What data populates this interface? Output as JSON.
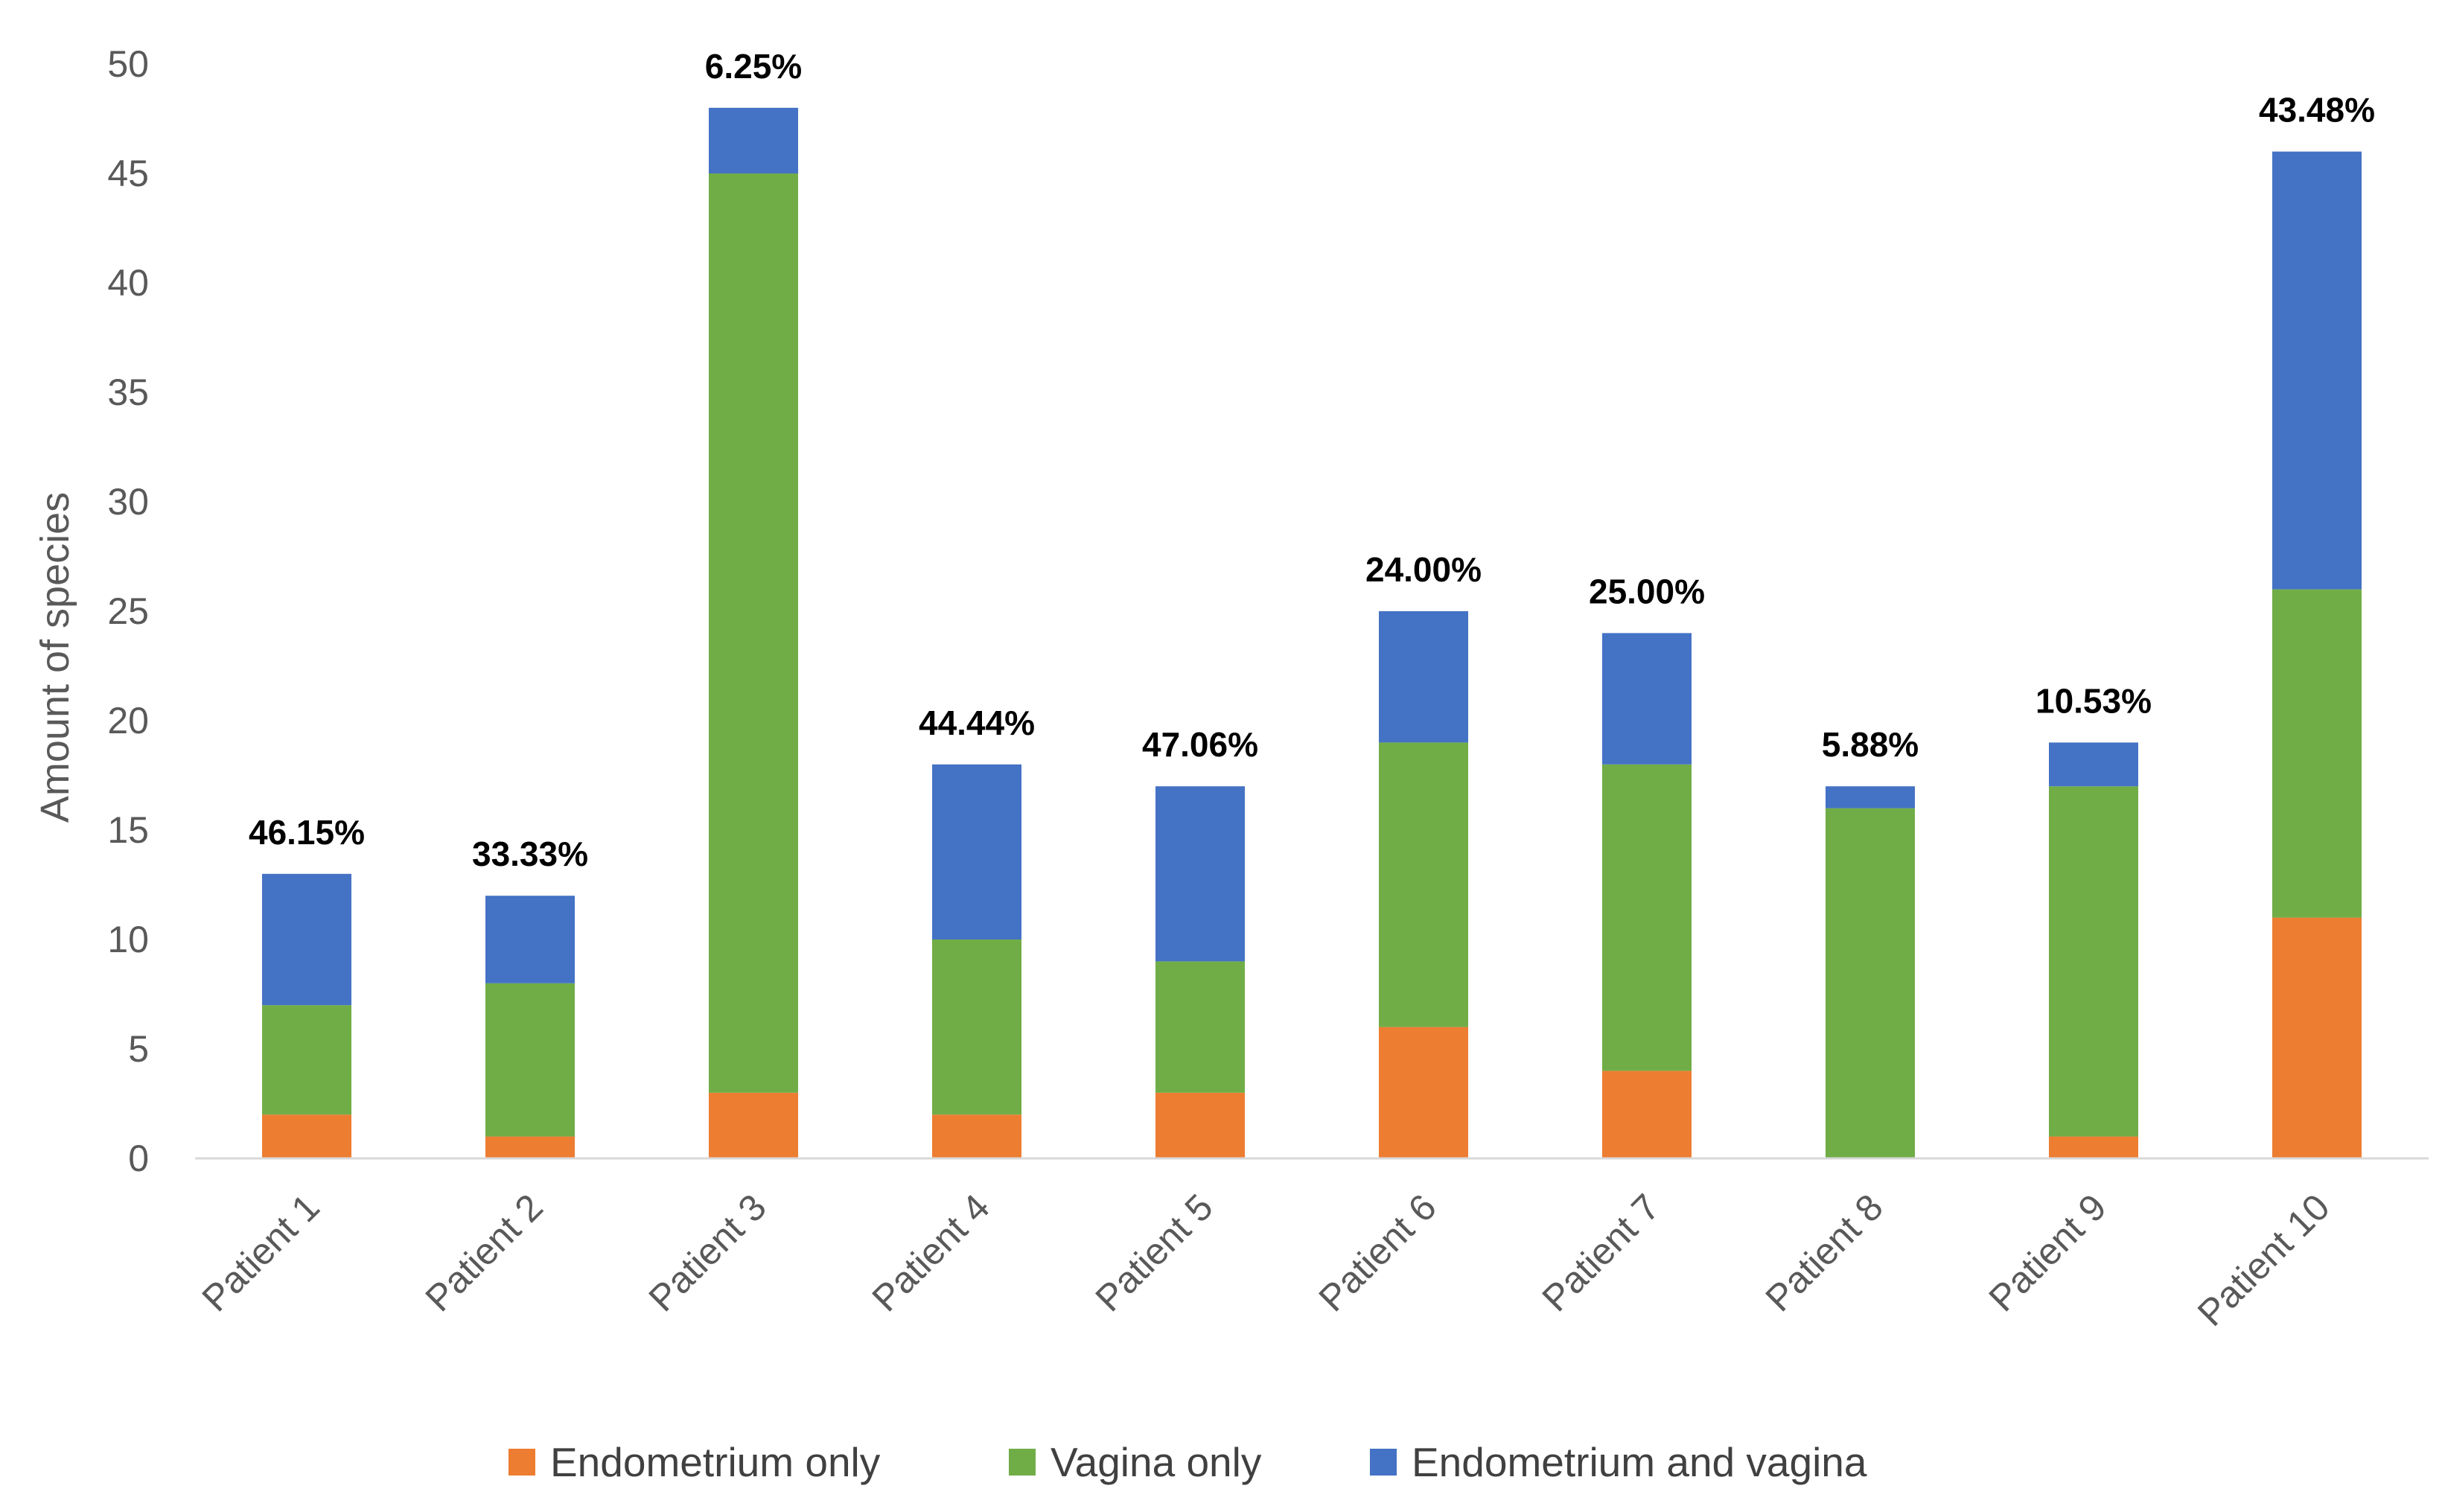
{
  "chart_data": {
    "type": "bar",
    "stacked": true,
    "title": "",
    "xlabel": "",
    "ylabel": "Amount of species",
    "ylim": [
      0,
      50
    ],
    "yticks": [
      0,
      5,
      10,
      15,
      20,
      25,
      30,
      35,
      40,
      45,
      50
    ],
    "categories": [
      "Patient 1",
      "Patient 2",
      "Patient 3",
      "Patient 4",
      "Patient 5",
      "Patient 6",
      "Patient 7",
      "Patient 8",
      "Patient 9",
      "Patient 10"
    ],
    "series": [
      {
        "name": "Endometrium only",
        "color": "#ED7D31",
        "values": [
          2,
          1,
          3,
          2,
          3,
          6,
          4,
          0,
          1,
          11
        ]
      },
      {
        "name": "Vagina only",
        "color": "#70AD47",
        "values": [
          5,
          7,
          42,
          8,
          6,
          13,
          14,
          16,
          16,
          15
        ]
      },
      {
        "name": "Endometrium and vagina",
        "color": "#4472C4",
        "values": [
          6,
          4,
          3,
          8,
          8,
          6,
          6,
          1,
          2,
          20
        ]
      }
    ],
    "data_labels": [
      "46.15%",
      "33.33%",
      "6.25%",
      "44.44%",
      "47.06%",
      "24.00%",
      "25.00%",
      "5.88%",
      "10.53%",
      "43.48%"
    ],
    "legend_position": "bottom",
    "grid": false
  }
}
